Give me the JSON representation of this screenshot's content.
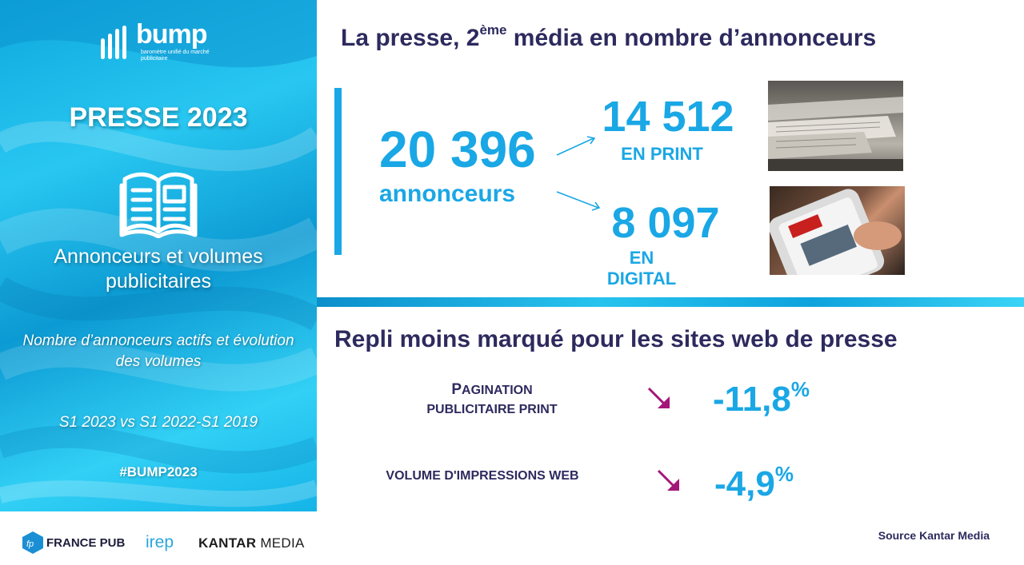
{
  "left_panel": {
    "logo_word": "bump",
    "logo_subtitle": "baromètre unifié du marché publicitaire",
    "title": "PRESSE 2023",
    "subtitle": "Annonceurs et volumes publicitaires",
    "description": "Nombre d’annonceurs actifs et évolution des volumes",
    "period": "S1 2023 vs S1 2022-S1 2019",
    "hashtag": "#BUMP2023",
    "icon": "newspaper-icon"
  },
  "top_section": {
    "title_before": "La presse, 2",
    "title_sup": "ème",
    "title_after": " média en nombre d’annonceurs",
    "total_value": "20 396",
    "total_label": "annonceurs",
    "print_value": "14 512",
    "print_label": "EN PRINT",
    "digital_value": "8 097",
    "digital_label": "EN DIGITAL"
  },
  "bottom_section": {
    "title": "Repli moins marqué pour les sites web de presse",
    "metrics": [
      {
        "label_cap": "P",
        "label_rest": "AGINATION",
        "label_line2": "PUBLICITAIRE PRINT",
        "value": "-11,8",
        "unit": "%",
        "trend_icon": "arrow-down-right-icon"
      },
      {
        "label": "VOLUME D'IMPRESSIONS WEB",
        "value": "-4,9",
        "unit": "%",
        "trend_icon": "arrow-down-right-icon"
      }
    ]
  },
  "footer": {
    "logo_fp_text": "FRANCE PUB",
    "logo_irep": "irep",
    "logo_kantar_bold": "KANTAR",
    "logo_kantar_rest": " MEDIA",
    "source": "Source Kantar Media"
  },
  "colors": {
    "accent_blue": "#1aa7e5",
    "title_navy": "#2d2a5e",
    "arrow_magenta": "#a3167a"
  }
}
